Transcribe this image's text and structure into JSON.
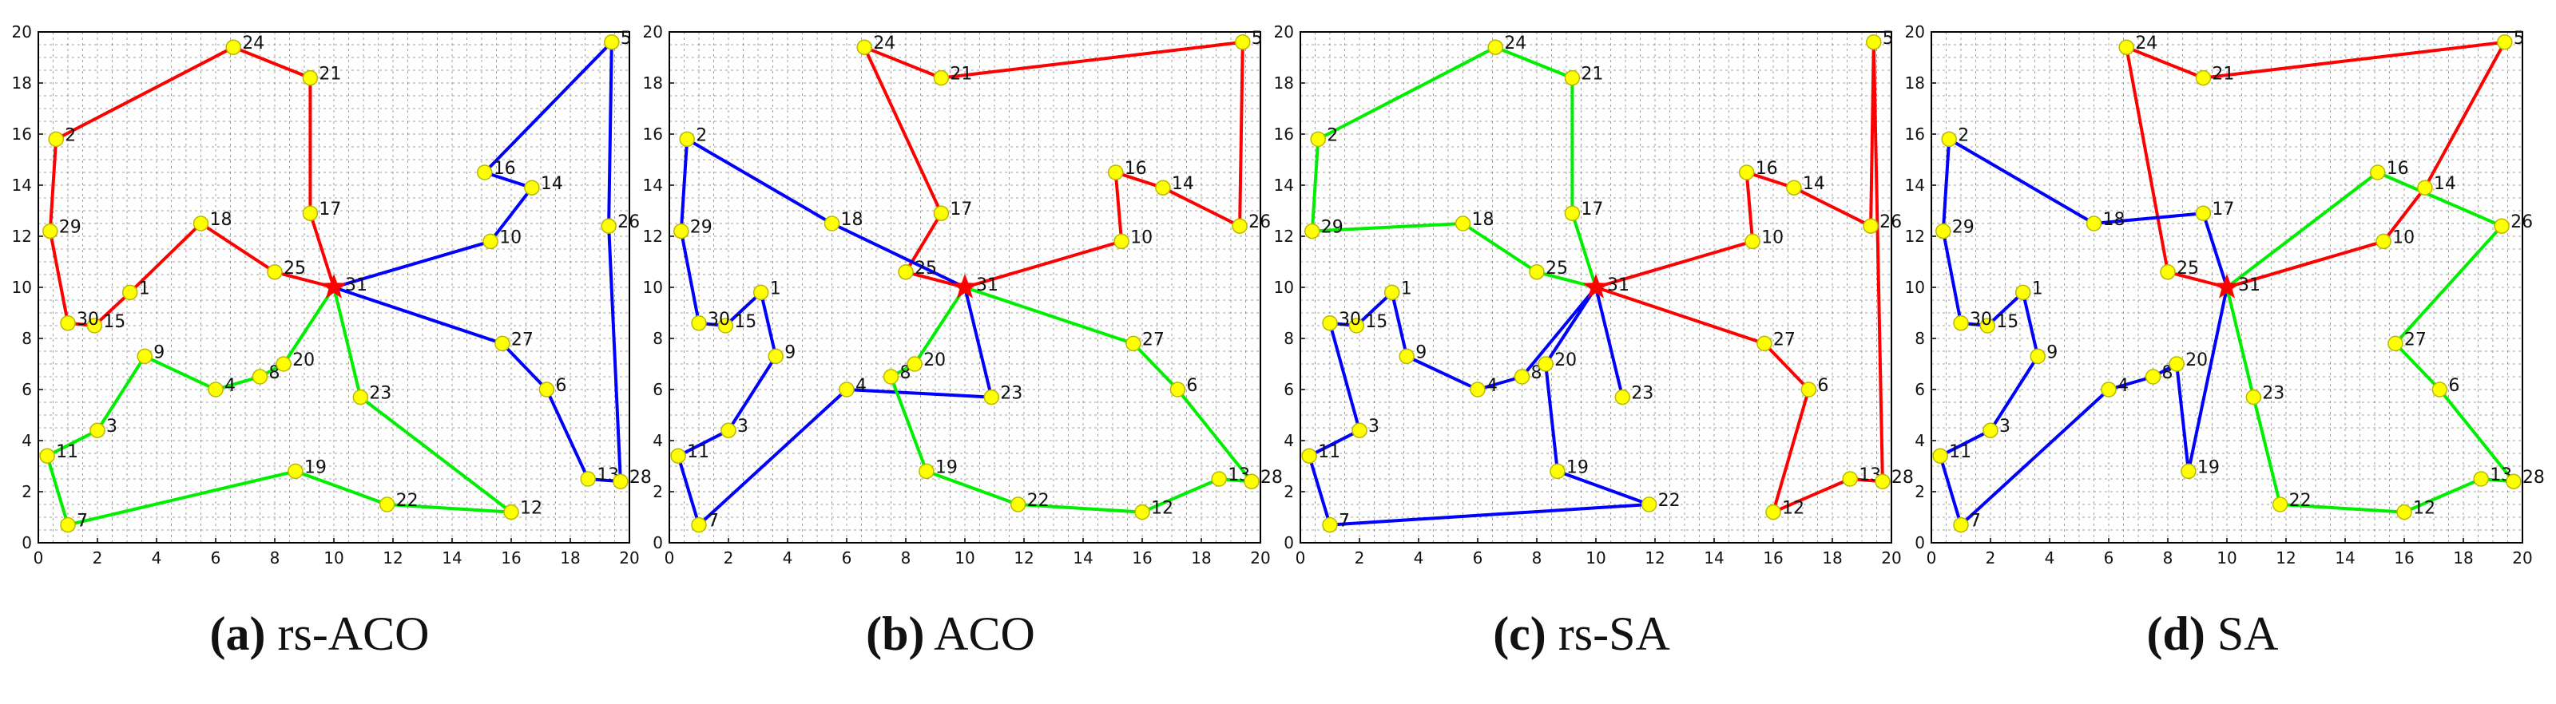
{
  "figure": {
    "colors": {
      "frame": "#000000",
      "grid": "#555555",
      "node_fill": "#ffff00",
      "node_stroke": "#b8b800",
      "depot": "#ff0000",
      "route_red": "#ff0000",
      "route_blue": "#0000ff",
      "route_green": "#00ee00"
    }
  },
  "chart_data": [
    {
      "type": "scatter",
      "caption_letter": "(a)",
      "caption_text": " rs-ACO",
      "xlim": [
        0,
        20
      ],
      "ylim": [
        0,
        20
      ],
      "xticks": [
        0,
        2,
        4,
        6,
        8,
        10,
        12,
        14,
        16,
        18,
        20
      ],
      "yticks": [
        0,
        2,
        4,
        6,
        8,
        10,
        12,
        14,
        16,
        18,
        20
      ],
      "grid": true,
      "depot": {
        "label": "31",
        "x": 10,
        "y": 10
      },
      "nodes": [
        {
          "label": "1",
          "x": 3.1,
          "y": 9.8
        },
        {
          "label": "2",
          "x": 0.6,
          "y": 15.8
        },
        {
          "label": "3",
          "x": 2.0,
          "y": 4.4
        },
        {
          "label": "4",
          "x": 6.0,
          "y": 6.0
        },
        {
          "label": "5",
          "x": 19.4,
          "y": 19.6
        },
        {
          "label": "6",
          "x": 17.2,
          "y": 6.0
        },
        {
          "label": "7",
          "x": 1.0,
          "y": 0.7
        },
        {
          "label": "8",
          "x": 7.5,
          "y": 6.5
        },
        {
          "label": "9",
          "x": 3.6,
          "y": 7.3
        },
        {
          "label": "10",
          "x": 15.3,
          "y": 11.8
        },
        {
          "label": "11",
          "x": 0.3,
          "y": 3.4
        },
        {
          "label": "12",
          "x": 16.0,
          "y": 1.2
        },
        {
          "label": "13",
          "x": 18.6,
          "y": 2.5
        },
        {
          "label": "14",
          "x": 16.7,
          "y": 13.9
        },
        {
          "label": "15",
          "x": 1.9,
          "y": 8.5
        },
        {
          "label": "16",
          "x": 15.1,
          "y": 14.5
        },
        {
          "label": "17",
          "x": 9.2,
          "y": 12.9
        },
        {
          "label": "18",
          "x": 5.5,
          "y": 12.5
        },
        {
          "label": "19",
          "x": 8.7,
          "y": 2.8
        },
        {
          "label": "20",
          "x": 8.3,
          "y": 7.0
        },
        {
          "label": "21",
          "x": 9.2,
          "y": 18.2
        },
        {
          "label": "22",
          "x": 11.8,
          "y": 1.5
        },
        {
          "label": "23",
          "x": 10.9,
          "y": 5.7
        },
        {
          "label": "24",
          "x": 6.6,
          "y": 19.4
        },
        {
          "label": "25",
          "x": 8.0,
          "y": 10.6
        },
        {
          "label": "26",
          "x": 19.3,
          "y": 12.4
        },
        {
          "label": "27",
          "x": 15.7,
          "y": 7.8
        },
        {
          "label": "28",
          "x": 19.7,
          "y": 2.4
        },
        {
          "label": "29",
          "x": 0.4,
          "y": 12.2
        },
        {
          "label": "30",
          "x": 1.0,
          "y": 8.6
        }
      ],
      "routes": [
        {
          "color": "red",
          "path": [
            "31",
            "17",
            "21",
            "24",
            "2",
            "29",
            "30",
            "15",
            "1",
            "18",
            "25",
            "31"
          ]
        },
        {
          "color": "blue",
          "path": [
            "31",
            "10",
            "14",
            "16",
            "5",
            "26",
            "28",
            "13",
            "6",
            "27",
            "31"
          ]
        },
        {
          "color": "green",
          "path": [
            "31",
            "20",
            "8",
            "4",
            "9",
            "3",
            "11",
            "7",
            "19",
            "22",
            "12",
            "23",
            "31"
          ]
        }
      ]
    },
    {
      "type": "scatter",
      "caption_letter": "(b)",
      "caption_text": " ACO",
      "xlim": [
        0,
        20
      ],
      "ylim": [
        0,
        20
      ],
      "xticks": [
        0,
        2,
        4,
        6,
        8,
        10,
        12,
        14,
        16,
        18,
        20
      ],
      "yticks": [
        0,
        2,
        4,
        6,
        8,
        10,
        12,
        14,
        16,
        18,
        20
      ],
      "grid": true,
      "depot": {
        "label": "31",
        "x": 10,
        "y": 10
      },
      "nodes": [
        {
          "label": "1",
          "x": 3.1,
          "y": 9.8
        },
        {
          "label": "2",
          "x": 0.6,
          "y": 15.8
        },
        {
          "label": "3",
          "x": 2.0,
          "y": 4.4
        },
        {
          "label": "4",
          "x": 6.0,
          "y": 6.0
        },
        {
          "label": "5",
          "x": 19.4,
          "y": 19.6
        },
        {
          "label": "6",
          "x": 17.2,
          "y": 6.0
        },
        {
          "label": "7",
          "x": 1.0,
          "y": 0.7
        },
        {
          "label": "8",
          "x": 7.5,
          "y": 6.5
        },
        {
          "label": "9",
          "x": 3.6,
          "y": 7.3
        },
        {
          "label": "10",
          "x": 15.3,
          "y": 11.8
        },
        {
          "label": "11",
          "x": 0.3,
          "y": 3.4
        },
        {
          "label": "12",
          "x": 16.0,
          "y": 1.2
        },
        {
          "label": "13",
          "x": 18.6,
          "y": 2.5
        },
        {
          "label": "14",
          "x": 16.7,
          "y": 13.9
        },
        {
          "label": "15",
          "x": 1.9,
          "y": 8.5
        },
        {
          "label": "16",
          "x": 15.1,
          "y": 14.5
        },
        {
          "label": "17",
          "x": 9.2,
          "y": 12.9
        },
        {
          "label": "18",
          "x": 5.5,
          "y": 12.5
        },
        {
          "label": "19",
          "x": 8.7,
          "y": 2.8
        },
        {
          "label": "20",
          "x": 8.3,
          "y": 7.0
        },
        {
          "label": "21",
          "x": 9.2,
          "y": 18.2
        },
        {
          "label": "22",
          "x": 11.8,
          "y": 1.5
        },
        {
          "label": "23",
          "x": 10.9,
          "y": 5.7
        },
        {
          "label": "24",
          "x": 6.6,
          "y": 19.4
        },
        {
          "label": "25",
          "x": 8.0,
          "y": 10.6
        },
        {
          "label": "26",
          "x": 19.3,
          "y": 12.4
        },
        {
          "label": "27",
          "x": 15.7,
          "y": 7.8
        },
        {
          "label": "28",
          "x": 19.7,
          "y": 2.4
        },
        {
          "label": "29",
          "x": 0.4,
          "y": 12.2
        },
        {
          "label": "30",
          "x": 1.0,
          "y": 8.6
        }
      ],
      "routes": [
        {
          "color": "red",
          "path": [
            "31",
            "25",
            "17",
            "24",
            "21",
            "5",
            "26",
            "14",
            "16",
            "10",
            "31"
          ]
        },
        {
          "color": "blue",
          "path": [
            "31",
            "18",
            "2",
            "29",
            "30",
            "15",
            "1",
            "9",
            "3",
            "11",
            "7",
            "4",
            "23",
            "31"
          ]
        },
        {
          "color": "green",
          "path": [
            "31",
            "20",
            "8",
            "19",
            "22",
            "12",
            "13",
            "28",
            "6",
            "27",
            "31"
          ]
        }
      ]
    },
    {
      "type": "scatter",
      "caption_letter": "(c)",
      "caption_text": " rs-SA",
      "xlim": [
        0,
        20
      ],
      "ylim": [
        0,
        20
      ],
      "xticks": [
        0,
        2,
        4,
        6,
        8,
        10,
        12,
        14,
        16,
        18,
        20
      ],
      "yticks": [
        0,
        2,
        4,
        6,
        8,
        10,
        12,
        14,
        16,
        18,
        20
      ],
      "grid": true,
      "depot": {
        "label": "31",
        "x": 10,
        "y": 10
      },
      "nodes": [
        {
          "label": "1",
          "x": 3.1,
          "y": 9.8
        },
        {
          "label": "2",
          "x": 0.6,
          "y": 15.8
        },
        {
          "label": "3",
          "x": 2.0,
          "y": 4.4
        },
        {
          "label": "4",
          "x": 6.0,
          "y": 6.0
        },
        {
          "label": "5",
          "x": 19.4,
          "y": 19.6
        },
        {
          "label": "6",
          "x": 17.2,
          "y": 6.0
        },
        {
          "label": "7",
          "x": 1.0,
          "y": 0.7
        },
        {
          "label": "8",
          "x": 7.5,
          "y": 6.5
        },
        {
          "label": "9",
          "x": 3.6,
          "y": 7.3
        },
        {
          "label": "10",
          "x": 15.3,
          "y": 11.8
        },
        {
          "label": "11",
          "x": 0.3,
          "y": 3.4
        },
        {
          "label": "12",
          "x": 16.0,
          "y": 1.2
        },
        {
          "label": "13",
          "x": 18.6,
          "y": 2.5
        },
        {
          "label": "14",
          "x": 16.7,
          "y": 13.9
        },
        {
          "label": "15",
          "x": 1.9,
          "y": 8.5
        },
        {
          "label": "16",
          "x": 15.1,
          "y": 14.5
        },
        {
          "label": "17",
          "x": 9.2,
          "y": 12.9
        },
        {
          "label": "18",
          "x": 5.5,
          "y": 12.5
        },
        {
          "label": "19",
          "x": 8.7,
          "y": 2.8
        },
        {
          "label": "20",
          "x": 8.3,
          "y": 7.0
        },
        {
          "label": "21",
          "x": 9.2,
          "y": 18.2
        },
        {
          "label": "22",
          "x": 11.8,
          "y": 1.5
        },
        {
          "label": "23",
          "x": 10.9,
          "y": 5.7
        },
        {
          "label": "24",
          "x": 6.6,
          "y": 19.4
        },
        {
          "label": "25",
          "x": 8.0,
          "y": 10.6
        },
        {
          "label": "26",
          "x": 19.3,
          "y": 12.4
        },
        {
          "label": "27",
          "x": 15.7,
          "y": 7.8
        },
        {
          "label": "28",
          "x": 19.7,
          "y": 2.4
        },
        {
          "label": "29",
          "x": 0.4,
          "y": 12.2
        },
        {
          "label": "30",
          "x": 1.0,
          "y": 8.6
        }
      ],
      "routes": [
        {
          "color": "red",
          "path": [
            "31",
            "10",
            "16",
            "14",
            "26",
            "5",
            "28",
            "13",
            "12",
            "6",
            "27",
            "31"
          ]
        },
        {
          "color": "blue",
          "path": [
            "31",
            "8",
            "4",
            "9",
            "1",
            "15",
            "30",
            "3",
            "11",
            "7",
            "22",
            "19",
            "20",
            "31"
          ]
        },
        {
          "color": "blue",
          "path": [
            "31",
            "23"
          ]
        },
        {
          "color": "green",
          "path": [
            "31",
            "25",
            "18",
            "29",
            "2",
            "24",
            "21",
            "17",
            "31"
          ]
        }
      ]
    },
    {
      "type": "scatter",
      "caption_letter": "(d)",
      "caption_text": " SA",
      "xlim": [
        0,
        20
      ],
      "ylim": [
        0,
        20
      ],
      "xticks": [
        0,
        2,
        4,
        6,
        8,
        10,
        12,
        14,
        16,
        18,
        20
      ],
      "yticks": [
        0,
        2,
        4,
        6,
        8,
        10,
        12,
        14,
        16,
        18,
        20
      ],
      "grid": true,
      "depot": {
        "label": "31",
        "x": 10,
        "y": 10
      },
      "nodes": [
        {
          "label": "1",
          "x": 3.1,
          "y": 9.8
        },
        {
          "label": "2",
          "x": 0.6,
          "y": 15.8
        },
        {
          "label": "3",
          "x": 2.0,
          "y": 4.4
        },
        {
          "label": "4",
          "x": 6.0,
          "y": 6.0
        },
        {
          "label": "5",
          "x": 19.4,
          "y": 19.6
        },
        {
          "label": "6",
          "x": 17.2,
          "y": 6.0
        },
        {
          "label": "7",
          "x": 1.0,
          "y": 0.7
        },
        {
          "label": "8",
          "x": 7.5,
          "y": 6.5
        },
        {
          "label": "9",
          "x": 3.6,
          "y": 7.3
        },
        {
          "label": "10",
          "x": 15.3,
          "y": 11.8
        },
        {
          "label": "11",
          "x": 0.3,
          "y": 3.4
        },
        {
          "label": "12",
          "x": 16.0,
          "y": 1.2
        },
        {
          "label": "13",
          "x": 18.6,
          "y": 2.5
        },
        {
          "label": "14",
          "x": 16.7,
          "y": 13.9
        },
        {
          "label": "15",
          "x": 1.9,
          "y": 8.5
        },
        {
          "label": "16",
          "x": 15.1,
          "y": 14.5
        },
        {
          "label": "17",
          "x": 9.2,
          "y": 12.9
        },
        {
          "label": "18",
          "x": 5.5,
          "y": 12.5
        },
        {
          "label": "19",
          "x": 8.7,
          "y": 2.8
        },
        {
          "label": "20",
          "x": 8.3,
          "y": 7.0
        },
        {
          "label": "21",
          "x": 9.2,
          "y": 18.2
        },
        {
          "label": "22",
          "x": 11.8,
          "y": 1.5
        },
        {
          "label": "23",
          "x": 10.9,
          "y": 5.7
        },
        {
          "label": "24",
          "x": 6.6,
          "y": 19.4
        },
        {
          "label": "25",
          "x": 8.0,
          "y": 10.6
        },
        {
          "label": "26",
          "x": 19.3,
          "y": 12.4
        },
        {
          "label": "27",
          "x": 15.7,
          "y": 7.8
        },
        {
          "label": "28",
          "x": 19.7,
          "y": 2.4
        },
        {
          "label": "29",
          "x": 0.4,
          "y": 12.2
        },
        {
          "label": "30",
          "x": 1.0,
          "y": 8.6
        }
      ],
      "routes": [
        {
          "color": "red",
          "path": [
            "31",
            "25",
            "24",
            "21",
            "5",
            "14",
            "10",
            "31"
          ]
        },
        {
          "color": "blue",
          "path": [
            "31",
            "17",
            "18",
            "2",
            "29",
            "30",
            "15",
            "1",
            "9",
            "3",
            "11",
            "7",
            "4",
            "8",
            "20",
            "19",
            "31"
          ]
        },
        {
          "color": "green",
          "path": [
            "31",
            "16",
            "26",
            "27",
            "6",
            "28",
            "13",
            "12",
            "22",
            "23",
            "31"
          ]
        }
      ]
    }
  ]
}
